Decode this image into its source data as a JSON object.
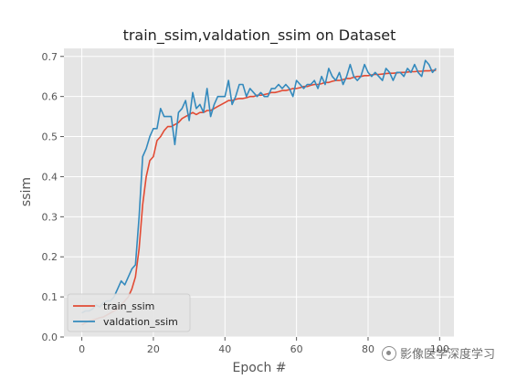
{
  "chart_data": {
    "type": "line",
    "title": "train_ssim,valdation_ssim on Dataset",
    "xlabel": "Epoch #",
    "ylabel": "ssim",
    "xlim": [
      -5,
      104
    ],
    "ylim": [
      0,
      0.72
    ],
    "xticks": [
      0,
      20,
      40,
      60,
      80,
      100
    ],
    "yticks": [
      0.0,
      0.1,
      0.2,
      0.3,
      0.4,
      0.5,
      0.6,
      0.7
    ],
    "grid": true,
    "legend_position": "lower-left",
    "colors": {
      "train_ssim": "#e24a33",
      "valdation_ssim": "#348abd",
      "background": "#e5e5e5",
      "grid": "#ffffff"
    },
    "series": [
      {
        "name": "train_ssim",
        "x": [
          0,
          1,
          2,
          3,
          4,
          5,
          6,
          7,
          8,
          9,
          10,
          11,
          12,
          13,
          14,
          15,
          16,
          17,
          18,
          19,
          20,
          21,
          22,
          23,
          24,
          25,
          26,
          27,
          28,
          29,
          30,
          31,
          32,
          33,
          34,
          35,
          36,
          37,
          38,
          39,
          40,
          41,
          42,
          43,
          44,
          45,
          46,
          47,
          48,
          49,
          50,
          51,
          52,
          53,
          54,
          55,
          56,
          57,
          58,
          59,
          60,
          61,
          62,
          63,
          64,
          65,
          66,
          67,
          68,
          69,
          70,
          71,
          72,
          73,
          74,
          75,
          76,
          77,
          78,
          79,
          80,
          81,
          82,
          83,
          84,
          85,
          86,
          87,
          88,
          89,
          90,
          91,
          92,
          93,
          94,
          95,
          96,
          97,
          98,
          99
        ],
        "values": [
          0.03,
          0.035,
          0.04,
          0.042,
          0.045,
          0.048,
          0.05,
          0.055,
          0.06,
          0.065,
          0.07,
          0.08,
          0.09,
          0.1,
          0.12,
          0.15,
          0.22,
          0.33,
          0.4,
          0.44,
          0.45,
          0.49,
          0.5,
          0.515,
          0.525,
          0.525,
          0.53,
          0.535,
          0.545,
          0.55,
          0.555,
          0.56,
          0.555,
          0.56,
          0.56,
          0.565,
          0.565,
          0.57,
          0.575,
          0.58,
          0.585,
          0.59,
          0.59,
          0.593,
          0.595,
          0.595,
          0.597,
          0.6,
          0.6,
          0.603,
          0.603,
          0.605,
          0.607,
          0.61,
          0.61,
          0.612,
          0.615,
          0.615,
          0.617,
          0.62,
          0.62,
          0.622,
          0.625,
          0.625,
          0.628,
          0.63,
          0.63,
          0.632,
          0.635,
          0.635,
          0.638,
          0.64,
          0.64,
          0.642,
          0.645,
          0.645,
          0.648,
          0.65,
          0.65,
          0.652,
          0.652,
          0.654,
          0.655,
          0.655,
          0.656,
          0.657,
          0.658,
          0.658,
          0.659,
          0.66,
          0.66,
          0.661,
          0.662,
          0.662,
          0.663,
          0.663,
          0.664,
          0.664,
          0.665,
          0.665
        ]
      },
      {
        "name": "valdation_ssim",
        "x": [
          0,
          1,
          2,
          3,
          4,
          5,
          6,
          7,
          8,
          9,
          10,
          11,
          12,
          13,
          14,
          15,
          16,
          17,
          18,
          19,
          20,
          21,
          22,
          23,
          24,
          25,
          26,
          27,
          28,
          29,
          30,
          31,
          32,
          33,
          34,
          35,
          36,
          37,
          38,
          39,
          40,
          41,
          42,
          43,
          44,
          45,
          46,
          47,
          48,
          49,
          50,
          51,
          52,
          53,
          54,
          55,
          56,
          57,
          58,
          59,
          60,
          61,
          62,
          63,
          64,
          65,
          66,
          67,
          68,
          69,
          70,
          71,
          72,
          73,
          74,
          75,
          76,
          77,
          78,
          79,
          80,
          81,
          82,
          83,
          84,
          85,
          86,
          87,
          88,
          89,
          90,
          91,
          92,
          93,
          94,
          95,
          96,
          97,
          98,
          99
        ],
        "values": [
          0.06,
          0.065,
          0.065,
          0.07,
          0.08,
          0.075,
          0.085,
          0.09,
          0.09,
          0.1,
          0.12,
          0.14,
          0.13,
          0.15,
          0.17,
          0.18,
          0.3,
          0.45,
          0.47,
          0.5,
          0.52,
          0.52,
          0.57,
          0.55,
          0.55,
          0.55,
          0.48,
          0.56,
          0.57,
          0.59,
          0.54,
          0.61,
          0.57,
          0.58,
          0.56,
          0.62,
          0.55,
          0.58,
          0.6,
          0.6,
          0.6,
          0.64,
          0.58,
          0.6,
          0.63,
          0.63,
          0.6,
          0.62,
          0.61,
          0.6,
          0.61,
          0.6,
          0.6,
          0.62,
          0.62,
          0.63,
          0.62,
          0.63,
          0.62,
          0.6,
          0.64,
          0.63,
          0.62,
          0.63,
          0.63,
          0.64,
          0.62,
          0.65,
          0.63,
          0.67,
          0.65,
          0.64,
          0.66,
          0.63,
          0.65,
          0.68,
          0.65,
          0.64,
          0.65,
          0.68,
          0.66,
          0.65,
          0.66,
          0.65,
          0.64,
          0.67,
          0.66,
          0.64,
          0.66,
          0.66,
          0.65,
          0.67,
          0.66,
          0.68,
          0.66,
          0.65,
          0.69,
          0.68,
          0.66,
          0.67
        ]
      }
    ]
  },
  "watermark": {
    "text": "影像医学深度学习",
    "icon": "wechat-icon"
  }
}
